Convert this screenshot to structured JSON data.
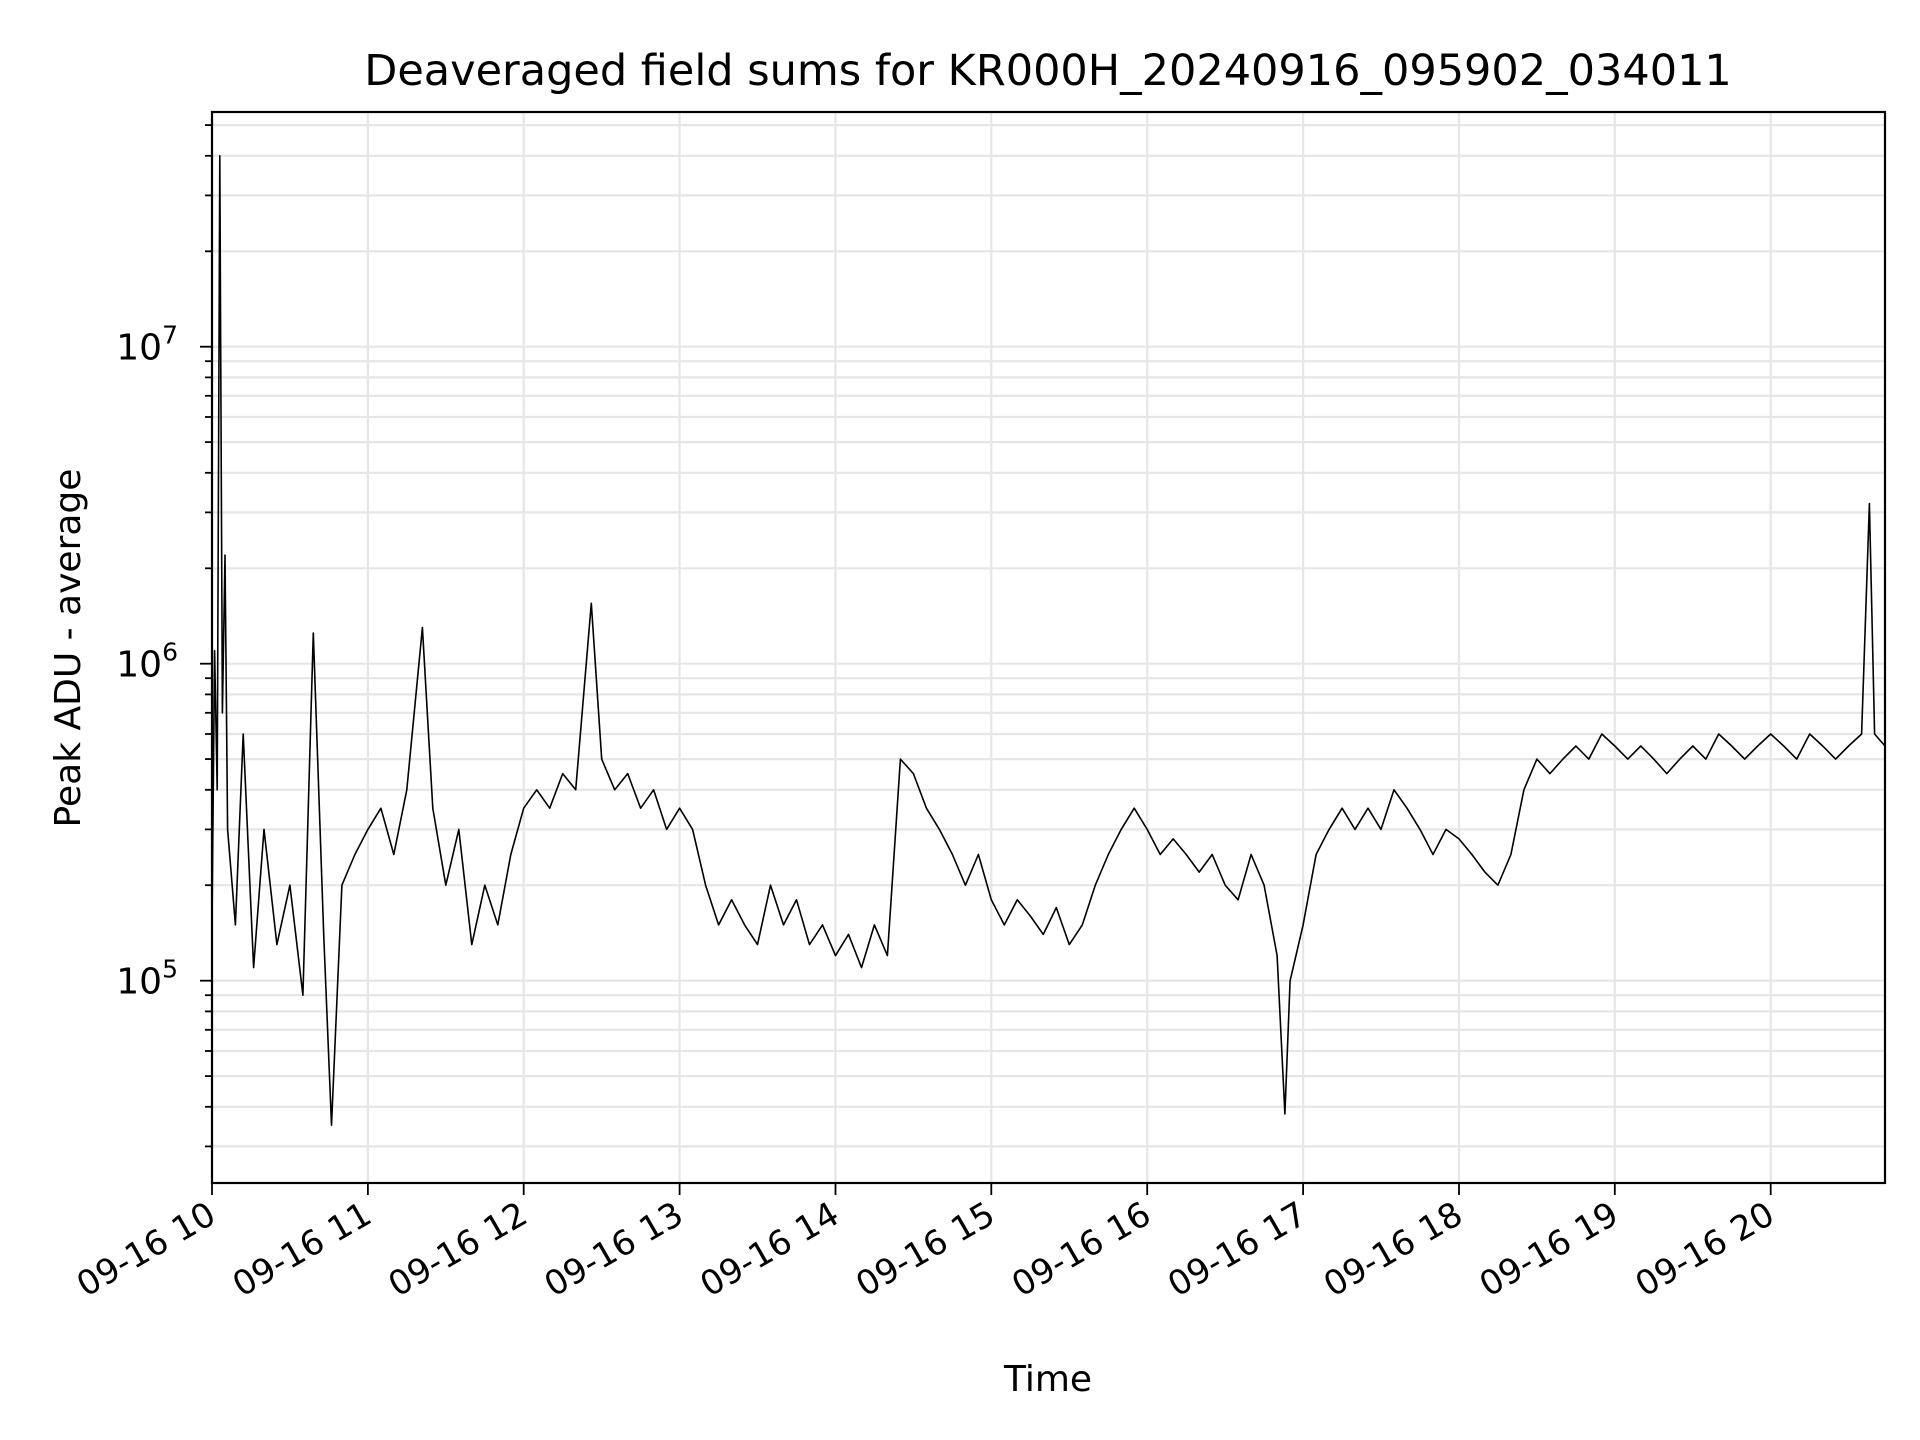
{
  "chart_data": {
    "type": "line",
    "title": "Deaveraged field sums for KR000H_20240916_095902_034011",
    "xlabel": "Time",
    "ylabel": "Peak ADU - average",
    "x_range": [
      "2024-09-16T10:00",
      "2024-09-16T20:44"
    ],
    "ylim": [
      23000,
      55000000
    ],
    "y_scale": "log",
    "grid": true,
    "line_color": "#000000",
    "x_ticks": [
      {
        "time": "2024-09-16T10:00",
        "label": "09-16 10"
      },
      {
        "time": "2024-09-16T11:00",
        "label": "09-16 11"
      },
      {
        "time": "2024-09-16T12:00",
        "label": "09-16 12"
      },
      {
        "time": "2024-09-16T13:00",
        "label": "09-16 13"
      },
      {
        "time": "2024-09-16T14:00",
        "label": "09-16 14"
      },
      {
        "time": "2024-09-16T15:00",
        "label": "09-16 15"
      },
      {
        "time": "2024-09-16T16:00",
        "label": "09-16 16"
      },
      {
        "time": "2024-09-16T17:00",
        "label": "09-16 17"
      },
      {
        "time": "2024-09-16T18:00",
        "label": "09-16 18"
      },
      {
        "time": "2024-09-16T19:00",
        "label": "09-16 19"
      },
      {
        "time": "2024-09-16T20:00",
        "label": "09-16 20"
      }
    ],
    "y_ticks": [
      {
        "value": 100000,
        "base": "10",
        "exp": "5"
      },
      {
        "value": 1000000,
        "base": "10",
        "exp": "6"
      },
      {
        "value": 10000000,
        "base": "10",
        "exp": "7"
      }
    ],
    "series": [
      {
        "points": [
          [
            "2024-09-16T10:00",
            150000
          ],
          [
            "2024-09-16T10:01",
            1100000
          ],
          [
            "2024-09-16T10:02",
            400000
          ],
          [
            "2024-09-16T10:03",
            40000000
          ],
          [
            "2024-09-16T10:04",
            700000
          ],
          [
            "2024-09-16T10:05",
            2200000
          ],
          [
            "2024-09-16T10:06",
            300000
          ],
          [
            "2024-09-16T10:09",
            150000
          ],
          [
            "2024-09-16T10:12",
            600000
          ],
          [
            "2024-09-16T10:16",
            110000
          ],
          [
            "2024-09-16T10:20",
            300000
          ],
          [
            "2024-09-16T10:25",
            130000
          ],
          [
            "2024-09-16T10:30",
            200000
          ],
          [
            "2024-09-16T10:35",
            90000
          ],
          [
            "2024-09-16T10:39",
            1250000
          ],
          [
            "2024-09-16T10:43",
            140000
          ],
          [
            "2024-09-16T10:46",
            35000
          ],
          [
            "2024-09-16T10:50",
            200000
          ],
          [
            "2024-09-16T10:55",
            250000
          ],
          [
            "2024-09-16T11:00",
            300000
          ],
          [
            "2024-09-16T11:05",
            350000
          ],
          [
            "2024-09-16T11:10",
            250000
          ],
          [
            "2024-09-16T11:15",
            400000
          ],
          [
            "2024-09-16T11:21",
            1300000
          ],
          [
            "2024-09-16T11:25",
            350000
          ],
          [
            "2024-09-16T11:30",
            200000
          ],
          [
            "2024-09-16T11:35",
            300000
          ],
          [
            "2024-09-16T11:40",
            130000
          ],
          [
            "2024-09-16T11:45",
            200000
          ],
          [
            "2024-09-16T11:50",
            150000
          ],
          [
            "2024-09-16T11:55",
            250000
          ],
          [
            "2024-09-16T12:00",
            350000
          ],
          [
            "2024-09-16T12:05",
            400000
          ],
          [
            "2024-09-16T12:10",
            350000
          ],
          [
            "2024-09-16T12:15",
            450000
          ],
          [
            "2024-09-16T12:20",
            400000
          ],
          [
            "2024-09-16T12:26",
            1550000
          ],
          [
            "2024-09-16T12:30",
            500000
          ],
          [
            "2024-09-16T12:35",
            400000
          ],
          [
            "2024-09-16T12:40",
            450000
          ],
          [
            "2024-09-16T12:45",
            350000
          ],
          [
            "2024-09-16T12:50",
            400000
          ],
          [
            "2024-09-16T12:55",
            300000
          ],
          [
            "2024-09-16T13:00",
            350000
          ],
          [
            "2024-09-16T13:05",
            300000
          ],
          [
            "2024-09-16T13:10",
            200000
          ],
          [
            "2024-09-16T13:15",
            150000
          ],
          [
            "2024-09-16T13:20",
            180000
          ],
          [
            "2024-09-16T13:25",
            150000
          ],
          [
            "2024-09-16T13:30",
            130000
          ],
          [
            "2024-09-16T13:35",
            200000
          ],
          [
            "2024-09-16T13:40",
            150000
          ],
          [
            "2024-09-16T13:45",
            180000
          ],
          [
            "2024-09-16T13:50",
            130000
          ],
          [
            "2024-09-16T13:55",
            150000
          ],
          [
            "2024-09-16T14:00",
            120000
          ],
          [
            "2024-09-16T14:05",
            140000
          ],
          [
            "2024-09-16T14:10",
            110000
          ],
          [
            "2024-09-16T14:15",
            150000
          ],
          [
            "2024-09-16T14:20",
            120000
          ],
          [
            "2024-09-16T14:25",
            500000
          ],
          [
            "2024-09-16T14:30",
            450000
          ],
          [
            "2024-09-16T14:35",
            350000
          ],
          [
            "2024-09-16T14:40",
            300000
          ],
          [
            "2024-09-16T14:45",
            250000
          ],
          [
            "2024-09-16T14:50",
            200000
          ],
          [
            "2024-09-16T14:55",
            250000
          ],
          [
            "2024-09-16T15:00",
            180000
          ],
          [
            "2024-09-16T15:05",
            150000
          ],
          [
            "2024-09-16T15:10",
            180000
          ],
          [
            "2024-09-16T15:15",
            160000
          ],
          [
            "2024-09-16T15:20",
            140000
          ],
          [
            "2024-09-16T15:25",
            170000
          ],
          [
            "2024-09-16T15:30",
            130000
          ],
          [
            "2024-09-16T15:35",
            150000
          ],
          [
            "2024-09-16T15:40",
            200000
          ],
          [
            "2024-09-16T15:45",
            250000
          ],
          [
            "2024-09-16T15:50",
            300000
          ],
          [
            "2024-09-16T15:55",
            350000
          ],
          [
            "2024-09-16T16:00",
            300000
          ],
          [
            "2024-09-16T16:05",
            250000
          ],
          [
            "2024-09-16T16:10",
            280000
          ],
          [
            "2024-09-16T16:15",
            250000
          ],
          [
            "2024-09-16T16:20",
            220000
          ],
          [
            "2024-09-16T16:25",
            250000
          ],
          [
            "2024-09-16T16:30",
            200000
          ],
          [
            "2024-09-16T16:35",
            180000
          ],
          [
            "2024-09-16T16:40",
            250000
          ],
          [
            "2024-09-16T16:45",
            200000
          ],
          [
            "2024-09-16T16:50",
            120000
          ],
          [
            "2024-09-16T16:53",
            38000
          ],
          [
            "2024-09-16T16:55",
            100000
          ],
          [
            "2024-09-16T17:00",
            150000
          ],
          [
            "2024-09-16T17:05",
            250000
          ],
          [
            "2024-09-16T17:10",
            300000
          ],
          [
            "2024-09-16T17:15",
            350000
          ],
          [
            "2024-09-16T17:20",
            300000
          ],
          [
            "2024-09-16T17:25",
            350000
          ],
          [
            "2024-09-16T17:30",
            300000
          ],
          [
            "2024-09-16T17:35",
            400000
          ],
          [
            "2024-09-16T17:40",
            350000
          ],
          [
            "2024-09-16T17:45",
            300000
          ],
          [
            "2024-09-16T17:50",
            250000
          ],
          [
            "2024-09-16T17:55",
            300000
          ],
          [
            "2024-09-16T18:00",
            280000
          ],
          [
            "2024-09-16T18:05",
            250000
          ],
          [
            "2024-09-16T18:10",
            220000
          ],
          [
            "2024-09-16T18:15",
            200000
          ],
          [
            "2024-09-16T18:20",
            250000
          ],
          [
            "2024-09-16T18:25",
            400000
          ],
          [
            "2024-09-16T18:30",
            500000
          ],
          [
            "2024-09-16T18:35",
            450000
          ],
          [
            "2024-09-16T18:40",
            500000
          ],
          [
            "2024-09-16T18:45",
            550000
          ],
          [
            "2024-09-16T18:50",
            500000
          ],
          [
            "2024-09-16T18:55",
            600000
          ],
          [
            "2024-09-16T19:00",
            550000
          ],
          [
            "2024-09-16T19:05",
            500000
          ],
          [
            "2024-09-16T19:10",
            550000
          ],
          [
            "2024-09-16T19:15",
            500000
          ],
          [
            "2024-09-16T19:20",
            450000
          ],
          [
            "2024-09-16T19:25",
            500000
          ],
          [
            "2024-09-16T19:30",
            550000
          ],
          [
            "2024-09-16T19:35",
            500000
          ],
          [
            "2024-09-16T19:40",
            600000
          ],
          [
            "2024-09-16T19:45",
            550000
          ],
          [
            "2024-09-16T19:50",
            500000
          ],
          [
            "2024-09-16T19:55",
            550000
          ],
          [
            "2024-09-16T20:00",
            600000
          ],
          [
            "2024-09-16T20:05",
            550000
          ],
          [
            "2024-09-16T20:10",
            500000
          ],
          [
            "2024-09-16T20:15",
            600000
          ],
          [
            "2024-09-16T20:20",
            550000
          ],
          [
            "2024-09-16T20:25",
            500000
          ],
          [
            "2024-09-16T20:30",
            550000
          ],
          [
            "2024-09-16T20:35",
            600000
          ],
          [
            "2024-09-16T20:38",
            3200000
          ],
          [
            "2024-09-16T20:40",
            600000
          ],
          [
            "2024-09-16T20:44",
            550000
          ]
        ]
      }
    ]
  }
}
